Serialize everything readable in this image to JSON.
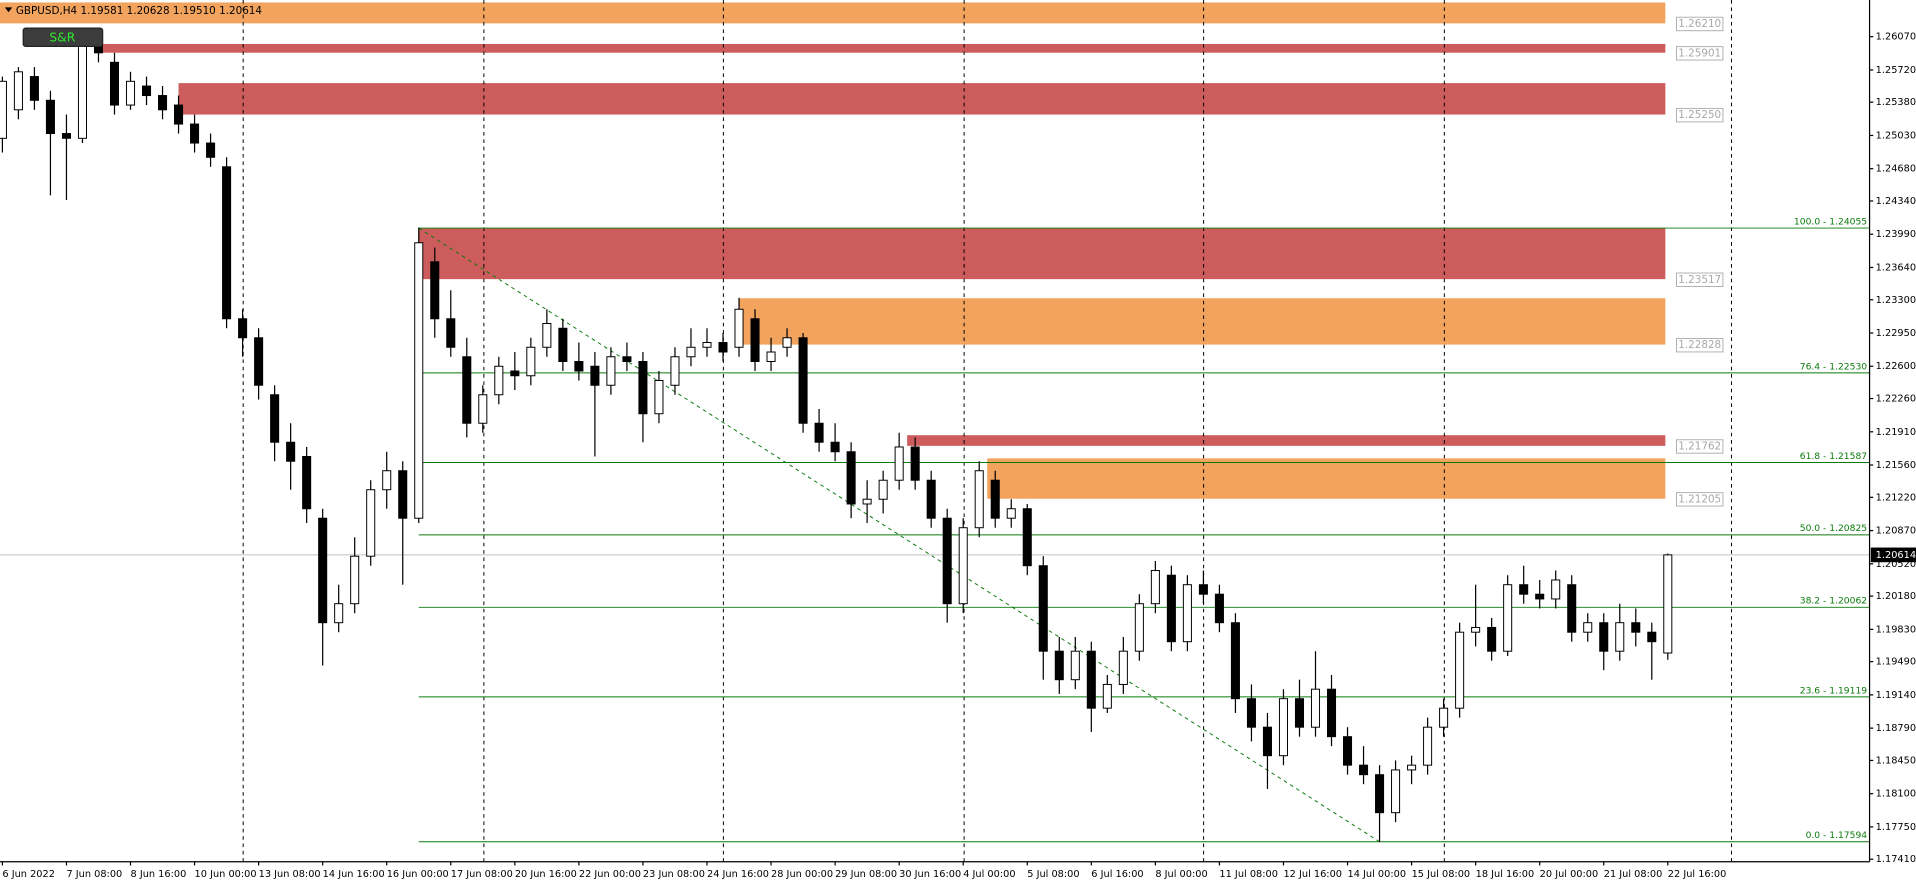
{
  "chart_data": {
    "type": "candlestick",
    "title": "GBPUSD,H4",
    "header_values": [
      1.19581,
      1.20628,
      {
        "value": 1.1951,
        "label": "1.19510"
      },
      1.20614
    ],
    "button": "S&R",
    "open": [
      1.25,
      1.253,
      1.2565,
      1.254,
      1.2505,
      1.25,
      1.26,
      1.258,
      1.2535,
      1.2555,
      1.2545,
      1.2535,
      1.2515,
      1.2495,
      1.247,
      1.231,
      1.229,
      1.223,
      1.218,
      1.2165,
      1.21,
      1.199,
      1.201,
      1.206,
      1.213,
      1.215,
      1.21,
      1.237,
      1.231,
      1.227,
      1.22,
      1.223,
      1.2255,
      1.225,
      1.228,
      1.23,
      1.2265,
      1.226,
      1.224,
      1.227,
      1.2265,
      1.221,
      1.224,
      1.227,
      1.228,
      1.2285,
      1.228,
      1.231,
      1.2265,
      1.228,
      1.229,
      1.22,
      1.218,
      1.217,
      1.2115,
      1.212,
      1.214,
      1.2175,
      1.214,
      1.21,
      1.201,
      1.209,
      1.214,
      1.21,
      1.211,
      1.205,
      1.196,
      1.193,
      1.196,
      1.19,
      1.1925,
      1.196,
      1.201,
      1.204,
      1.197,
      1.203,
      1.202,
      1.199,
      1.191,
      1.188,
      1.185,
      1.191,
      1.188,
      1.192,
      1.187,
      1.184,
      1.183,
      1.179,
      1.1835,
      1.184,
      1.188,
      1.19,
      1.198,
      1.1985,
      1.196,
      1.203,
      1.202,
      1.2015,
      1.203,
      1.198,
      1.199,
      1.196,
      1.199,
      1.198,
      1.19581
    ],
    "high": [
      1.2565,
      1.2575,
      1.2575,
      1.255,
      1.2525,
      1.2612,
      1.261,
      1.259,
      1.257,
      1.2565,
      1.2555,
      1.2545,
      1.2525,
      1.2505,
      1.248,
      1.232,
      1.23,
      1.224,
      1.22,
      1.2175,
      1.211,
      1.203,
      1.208,
      1.214,
      1.217,
      1.216,
      1.2406,
      1.2385,
      1.234,
      1.229,
      1.224,
      1.227,
      1.2275,
      1.229,
      1.232,
      1.231,
      1.2285,
      1.2275,
      1.228,
      1.2285,
      1.2275,
      1.2255,
      1.228,
      1.23,
      1.23,
      1.2295,
      1.2332,
      1.232,
      1.229,
      1.23,
      1.2295,
      1.2215,
      1.22,
      1.218,
      1.214,
      1.215,
      1.219,
      1.2185,
      1.215,
      1.211,
      1.21,
      1.216,
      1.215,
      1.212,
      1.2115,
      1.206,
      1.1975,
      1.1975,
      1.197,
      1.1935,
      1.1975,
      1.202,
      1.2055,
      1.205,
      1.204,
      1.2045,
      1.203,
      1.2,
      1.1925,
      1.1895,
      1.192,
      1.193,
      1.196,
      1.1935,
      1.188,
      1.186,
      1.184,
      1.1845,
      1.185,
      1.189,
      1.191,
      1.199,
      1.203,
      1.1995,
      1.204,
      1.205,
      1.2035,
      1.2045,
      1.204,
      1.2,
      1.2,
      1.201,
      1.2005,
      1.199,
      1.20628
    ],
    "low": [
      1.2485,
      1.252,
      1.253,
      1.244,
      1.2435,
      1.2495,
      1.258,
      1.2525,
      1.253,
      1.2535,
      1.252,
      1.2505,
      1.2485,
      1.247,
      1.23,
      1.227,
      1.2225,
      1.216,
      1.213,
      1.2095,
      1.1945,
      1.198,
      1.2,
      1.205,
      1.211,
      1.203,
      1.2095,
      1.229,
      1.227,
      1.2185,
      1.219,
      1.222,
      1.2235,
      1.224,
      1.227,
      1.2255,
      1.2245,
      1.2165,
      1.223,
      1.2255,
      1.218,
      1.22,
      1.223,
      1.226,
      1.227,
      1.2265,
      1.227,
      1.2255,
      1.2255,
      1.227,
      1.219,
      1.217,
      1.216,
      1.21,
      1.2095,
      1.2105,
      1.213,
      1.213,
      1.209,
      1.199,
      1.2,
      1.208,
      1.209,
      1.209,
      1.204,
      1.193,
      1.1915,
      1.192,
      1.1875,
      1.1895,
      1.1915,
      1.195,
      1.2,
      1.196,
      1.196,
      1.201,
      1.198,
      1.1895,
      1.1865,
      1.1815,
      1.184,
      1.187,
      1.187,
      1.186,
      1.183,
      1.182,
      1.1759,
      1.178,
      1.182,
      1.183,
      1.187,
      1.189,
      1.1965,
      1.195,
      1.1955,
      1.201,
      1.2005,
      1.2005,
      1.197,
      1.197,
      1.194,
      1.195,
      1.1965,
      1.193,
      1.1951
    ],
    "close": [
      1.256,
      1.257,
      1.254,
      1.2505,
      1.25,
      1.26,
      1.259,
      1.2535,
      1.256,
      1.2545,
      1.253,
      1.2515,
      1.2495,
      1.248,
      1.231,
      1.229,
      1.224,
      1.218,
      1.216,
      1.211,
      1.199,
      1.201,
      1.206,
      1.213,
      1.215,
      1.21,
      1.239,
      1.231,
      1.228,
      1.22,
      1.223,
      1.226,
      1.225,
      1.228,
      1.2305,
      1.2265,
      1.2255,
      1.224,
      1.227,
      1.2265,
      1.221,
      1.2245,
      1.227,
      1.228,
      1.2285,
      1.2275,
      1.232,
      1.2265,
      1.2275,
      1.229,
      1.22,
      1.218,
      1.217,
      1.2115,
      1.212,
      1.214,
      1.2175,
      1.214,
      1.21,
      1.201,
      1.209,
      1.215,
      1.21,
      1.211,
      1.205,
      1.196,
      1.193,
      1.196,
      1.19,
      1.1925,
      1.196,
      1.201,
      1.2045,
      1.197,
      1.203,
      1.202,
      1.199,
      1.191,
      1.188,
      1.185,
      1.191,
      1.188,
      1.192,
      1.187,
      1.184,
      1.183,
      1.179,
      1.1835,
      1.184,
      1.188,
      1.19,
      1.198,
      1.1985,
      1.196,
      1.203,
      1.202,
      1.2015,
      1.2035,
      1.198,
      1.199,
      1.196,
      1.199,
      1.198,
      1.197,
      1.20614
    ],
    "colors": {
      "up": "#ffffff",
      "down": "#000000",
      "fib": "#0b7a0b",
      "current": "#c0c0c0"
    },
    "xlim": [
      -0.15,
      116.6
    ],
    "xticks": [
      {
        "value": 0,
        "label": "6 Jun 2022"
      },
      {
        "value": 4,
        "label": "7 Jun 08:00"
      },
      {
        "value": 8,
        "label": "8 Jun 16:00"
      },
      {
        "value": 12,
        "label": "10 Jun 00:00"
      },
      {
        "value": 16,
        "label": "13 Jun 08:00"
      },
      {
        "value": 20,
        "label": "14 Jun 16:00"
      },
      {
        "value": 24,
        "label": "16 Jun 00:00"
      },
      {
        "value": 28,
        "label": "17 Jun 08:00"
      },
      {
        "value": 32,
        "label": "20 Jun 16:00"
      },
      {
        "value": 36,
        "label": "22 Jun 00:00"
      },
      {
        "value": 40,
        "label": "23 Jun 08:00"
      },
      {
        "value": 44,
        "label": "24 Jun 16:00"
      },
      {
        "value": 48,
        "label": "28 Jun 00:00"
      },
      {
        "value": 52,
        "label": "29 Jun 08:00"
      },
      {
        "value": 56,
        "label": "30 Jun 16:00"
      },
      {
        "value": 60,
        "label": "4 Jul 00:00"
      },
      {
        "value": 64,
        "label": "5 Jul 08:00"
      },
      {
        "value": 68,
        "label": "6 Jul 16:00"
      },
      {
        "value": 72,
        "label": "8 Jul 00:00"
      },
      {
        "value": 76,
        "label": "11 Jul 08:00"
      },
      {
        "value": 80,
        "label": "12 Jul 16:00"
      },
      {
        "value": 84,
        "label": "14 Jul 00:00"
      },
      {
        "value": 88,
        "label": "15 Jul 08:00"
      },
      {
        "value": 92,
        "label": "18 Jul 16:00"
      },
      {
        "value": 96,
        "label": "20 Jul 00:00"
      },
      {
        "value": 100,
        "label": "21 Jul 08:00"
      },
      {
        "value": 104,
        "label": "22 Jul 16:00"
      }
    ],
    "ylim": [
      1.17383,
      1.26456
    ],
    "yticks": [
      {
        "value": 1.2607,
        "label": "1.26070"
      },
      {
        "value": 1.2572,
        "label": "1.25720"
      },
      {
        "value": 1.2538,
        "label": "1.25380"
      },
      {
        "value": 1.2503,
        "label": "1.25030"
      },
      {
        "value": 1.2468,
        "label": "1.24680"
      },
      {
        "value": 1.2434,
        "label": "1.24340"
      },
      {
        "value": 1.2399,
        "label": "1.23990"
      },
      {
        "value": 1.2364,
        "label": "1.23640"
      },
      {
        "value": 1.233,
        "label": "1.23300"
      },
      {
        "value": 1.2295,
        "label": "1.22950"
      },
      {
        "value": 1.226,
        "label": "1.22600"
      },
      {
        "value": 1.2226,
        "label": "1.22260"
      },
      {
        "value": 1.2191,
        "label": "1.21910"
      },
      {
        "value": 1.2156,
        "label": "1.21560"
      },
      {
        "value": 1.2122,
        "label": "1.21220"
      },
      {
        "value": 1.2087,
        "label": "1.20870"
      },
      {
        "value": 1.2052,
        "label": "1.20520"
      },
      {
        "value": 1.2018,
        "label": "1.20180"
      },
      {
        "value": 1.1983,
        "label": "1.19830"
      },
      {
        "value": 1.1949,
        "label": "1.19490"
      },
      {
        "value": 1.1914,
        "label": "1.19140"
      },
      {
        "value": 1.1879,
        "label": "1.18790"
      },
      {
        "value": 1.1845,
        "label": "1.18450"
      },
      {
        "value": 1.181,
        "label": "1.18100"
      },
      {
        "value": 1.1775,
        "label": "1.17750"
      },
      {
        "value": 1.1741,
        "label": "1.17410"
      }
    ],
    "current_price": 1.20614,
    "zones": [
      {
        "top": 1.2643,
        "bottom": {
          "value": 1.2621,
          "label": "1.26210"
        },
        "start": -0.15,
        "color": "#f2a35e"
      },
      {
        "top": 1.25993,
        "bottom": 1.25901,
        "start": 6.2,
        "color": "#cd5c5c"
      },
      {
        "top": 1.25581,
        "bottom": {
          "value": 1.2525,
          "label": "1.25250"
        },
        "start": 11,
        "color": "#cd5c5c"
      },
      {
        "top": 1.2405,
        "bottom": 1.23517,
        "start": 26,
        "color": "#cd5c5c"
      },
      {
        "top": 1.23316,
        "bottom": 1.22828,
        "start": 46,
        "color": "#f2a35e"
      },
      {
        "top": 1.21874,
        "bottom": 1.21762,
        "start": 56.5,
        "color": "#cd5c5c"
      },
      {
        "top": 1.2163,
        "bottom": 1.21205,
        "start": 61.5,
        "color": "#f2a35e"
      }
    ],
    "fib": {
      "start": 26,
      "end": 86,
      "levels": [
        {
          "value": 1.24055,
          "label": "100.0 - 1.24055"
        },
        {
          "value": 1.2253,
          "label": "76.4 - 1.22530"
        },
        {
          "value": 1.21587,
          "label": "61.8 - 1.21587"
        },
        {
          "value": 1.20825,
          "label": "50.0 - 1.20825"
        },
        {
          "value": 1.20062,
          "label": "38.2 - 1.20062"
        },
        {
          "value": 1.19119,
          "label": "23.6 - 1.19119"
        },
        {
          "value": 1.17594,
          "label": "0.0 - 1.17594"
        }
      ]
    }
  }
}
